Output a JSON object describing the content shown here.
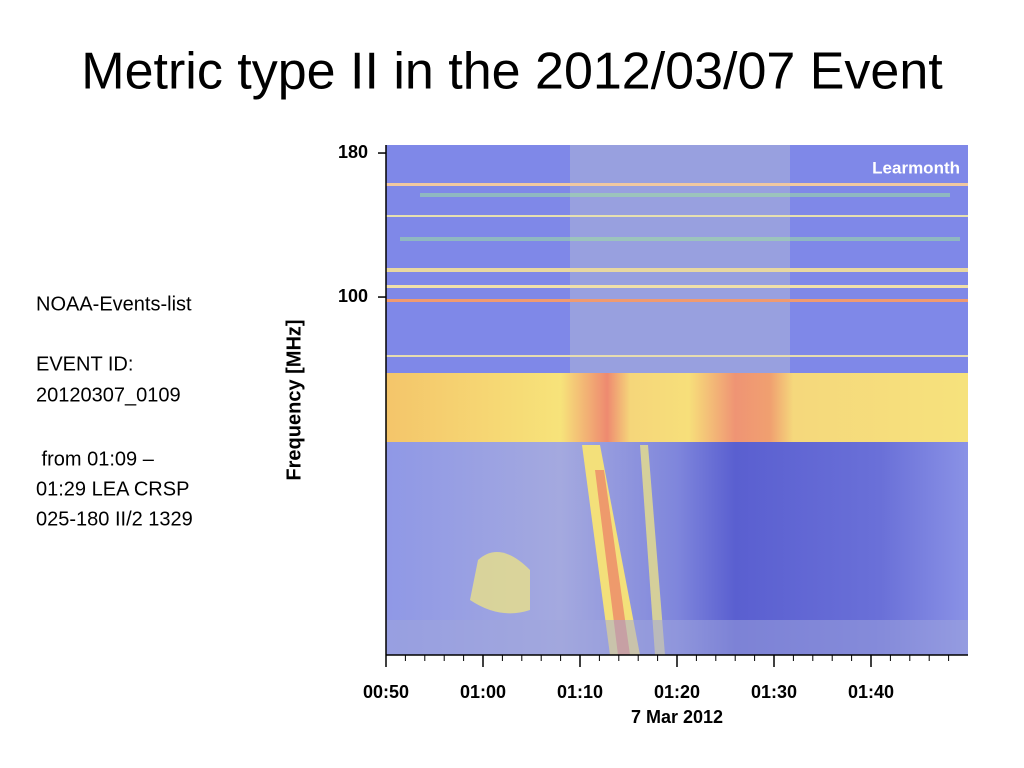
{
  "chart_data": {
    "type": "spectrogram",
    "title": "Metric type II in the 2012/03/07 Event",
    "notes": [
      "NOAA-Events-list",
      "EVENT ID:",
      "20120307_0109",
      " from 01:09 –",
      "01:29 LEA CRSP",
      "025-180 II/2 1329"
    ],
    "station": "Learmonth",
    "y_label": "Frequency [MHz]",
    "x_label": "7 Mar 2012",
    "log_y": true,
    "ylim": [
      23.2,
      186
    ],
    "yticks": [
      180,
      100
    ],
    "xlim": [
      "00:50",
      "01:50"
    ],
    "xticks": [
      "00:50",
      "01:00",
      "01:10",
      "01:20",
      "01:30",
      "01:40"
    ]
  }
}
